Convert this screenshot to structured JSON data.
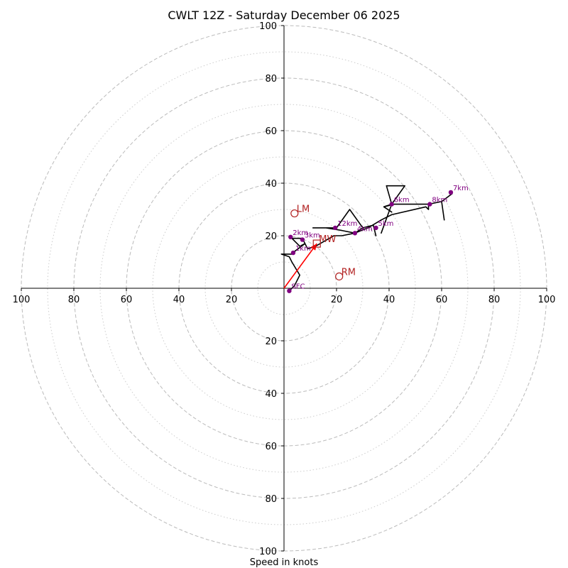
{
  "chart_data": {
    "type": "hodograph",
    "title": "CWLT 12Z - Saturday December 06 2025",
    "xlabel": "Speed in knots",
    "range": [
      -100,
      100
    ],
    "ring_major": [
      20,
      40,
      60,
      80,
      100
    ],
    "ring_minor": [
      10,
      30,
      50,
      70,
      90
    ],
    "x_tick_labels": [
      "100",
      "80",
      "60",
      "40",
      "20",
      "20",
      "40",
      "60",
      "80",
      "100"
    ],
    "y_tick_labels": [
      "100",
      "80",
      "60",
      "40",
      "20",
      "20",
      "40",
      "60",
      "80",
      "100"
    ],
    "colors": {
      "trace": "#000000",
      "height_points": "#800080",
      "motion": "#b22222",
      "mean_wind_vector": "#ff0000",
      "major_ring": "#bbbbbb",
      "minor_ring": "#cccccc"
    },
    "hodograph_trace": [
      [
        2,
        -1
      ],
      [
        4,
        1
      ],
      [
        6,
        5
      ],
      [
        3,
        10
      ],
      [
        2,
        12
      ],
      [
        -1,
        13
      ],
      [
        3,
        13
      ],
      [
        4,
        14
      ],
      [
        8,
        17
      ],
      [
        6,
        16
      ],
      [
        3,
        19
      ],
      [
        7,
        19
      ],
      [
        9,
        15
      ],
      [
        12,
        16
      ],
      [
        19,
        20
      ],
      [
        22,
        20
      ],
      [
        27,
        21
      ],
      [
        30,
        23
      ],
      [
        34,
        24
      ],
      [
        35,
        20
      ],
      [
        34,
        24
      ],
      [
        30,
        23
      ],
      [
        25,
        30
      ],
      [
        20,
        23
      ],
      [
        11,
        23
      ],
      [
        16,
        23
      ],
      [
        22,
        22
      ],
      [
        27,
        21
      ],
      [
        32,
        23
      ],
      [
        37,
        26
      ],
      [
        41,
        28
      ],
      [
        54,
        31
      ],
      [
        55,
        30
      ],
      [
        55,
        32
      ],
      [
        60,
        33
      ],
      [
        61,
        26
      ],
      [
        60,
        33
      ],
      [
        64,
        36
      ],
      [
        60,
        33
      ],
      [
        55,
        32
      ],
      [
        42,
        32
      ],
      [
        38,
        31
      ],
      [
        41,
        29
      ],
      [
        38,
        31
      ],
      [
        41,
        32
      ],
      [
        37,
        21
      ],
      [
        41,
        32
      ],
      [
        39,
        39
      ],
      [
        46,
        39
      ],
      [
        41,
        32
      ]
    ],
    "height_markers": [
      {
        "label": "SFC",
        "u": 2,
        "v": -1
      },
      {
        "label": "1km",
        "u": 3.5,
        "v": 13.5
      },
      {
        "label": "2km",
        "u": 2.5,
        "v": 19.5
      },
      {
        "label": "3km",
        "u": 7,
        "v": 18.5
      },
      {
        "label": "4km",
        "u": 27,
        "v": 21
      },
      {
        "label": "5km",
        "u": 35,
        "v": 23
      },
      {
        "label": "6km",
        "u": 41,
        "v": 32
      },
      {
        "label": "7km",
        "u": 63.5,
        "v": 36.5
      },
      {
        "label": "8km",
        "u": 55.5,
        "v": 32
      },
      {
        "label": "12km",
        "u": 19.5,
        "v": 23
      }
    ],
    "storm_motion": [
      {
        "label": "LM",
        "u": 4,
        "v": 28.5,
        "marker": "circle"
      },
      {
        "label": "RM",
        "u": 21,
        "v": 4.5,
        "marker": "circle"
      },
      {
        "label": "MW",
        "u": 12.5,
        "v": 17,
        "marker": "square"
      }
    ],
    "mean_wind_vector": {
      "from": [
        0,
        0
      ],
      "to": [
        12.5,
        17
      ]
    }
  }
}
